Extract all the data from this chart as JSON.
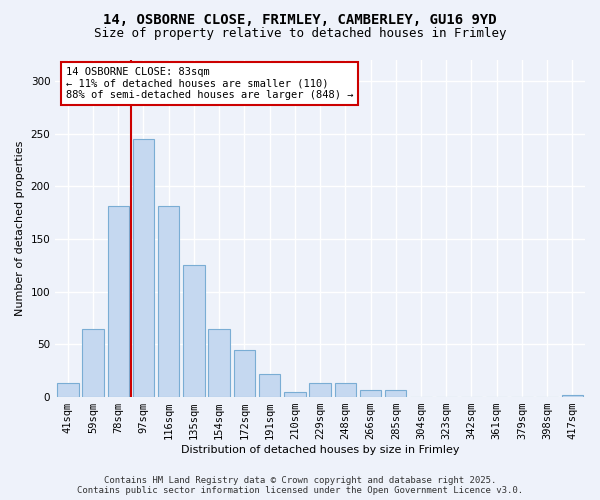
{
  "title_line1": "14, OSBORNE CLOSE, FRIMLEY, CAMBERLEY, GU16 9YD",
  "title_line2": "Size of property relative to detached houses in Frimley",
  "xlabel": "Distribution of detached houses by size in Frimley",
  "ylabel": "Number of detached properties",
  "bar_labels": [
    "41sqm",
    "59sqm",
    "78sqm",
    "97sqm",
    "116sqm",
    "135sqm",
    "154sqm",
    "172sqm",
    "191sqm",
    "210sqm",
    "229sqm",
    "248sqm",
    "266sqm",
    "285sqm",
    "304sqm",
    "323sqm",
    "342sqm",
    "361sqm",
    "379sqm",
    "398sqm",
    "417sqm"
  ],
  "bar_values": [
    13,
    65,
    181,
    245,
    181,
    125,
    65,
    45,
    22,
    5,
    13,
    13,
    7,
    7,
    0,
    0,
    0,
    0,
    0,
    0,
    2
  ],
  "bar_color": "#c5d8f0",
  "bar_edgecolor": "#7aadd4",
  "vline_x": 2.5,
  "vline_color": "#cc0000",
  "annotation_text": "14 OSBORNE CLOSE: 83sqm\n← 11% of detached houses are smaller (110)\n88% of semi-detached houses are larger (848) →",
  "annotation_box_facecolor": "#ffffff",
  "annotation_box_edgecolor": "#cc0000",
  "ylim": [
    0,
    320
  ],
  "yticks": [
    0,
    50,
    100,
    150,
    200,
    250,
    300
  ],
  "background_color": "#eef2fa",
  "grid_color": "#ffffff",
  "footer_line1": "Contains HM Land Registry data © Crown copyright and database right 2025.",
  "footer_line2": "Contains public sector information licensed under the Open Government Licence v3.0.",
  "title_fontsize": 10,
  "subtitle_fontsize": 9,
  "axis_label_fontsize": 8,
  "tick_fontsize": 7.5,
  "annotation_fontsize": 7.5,
  "footer_fontsize": 6.5
}
